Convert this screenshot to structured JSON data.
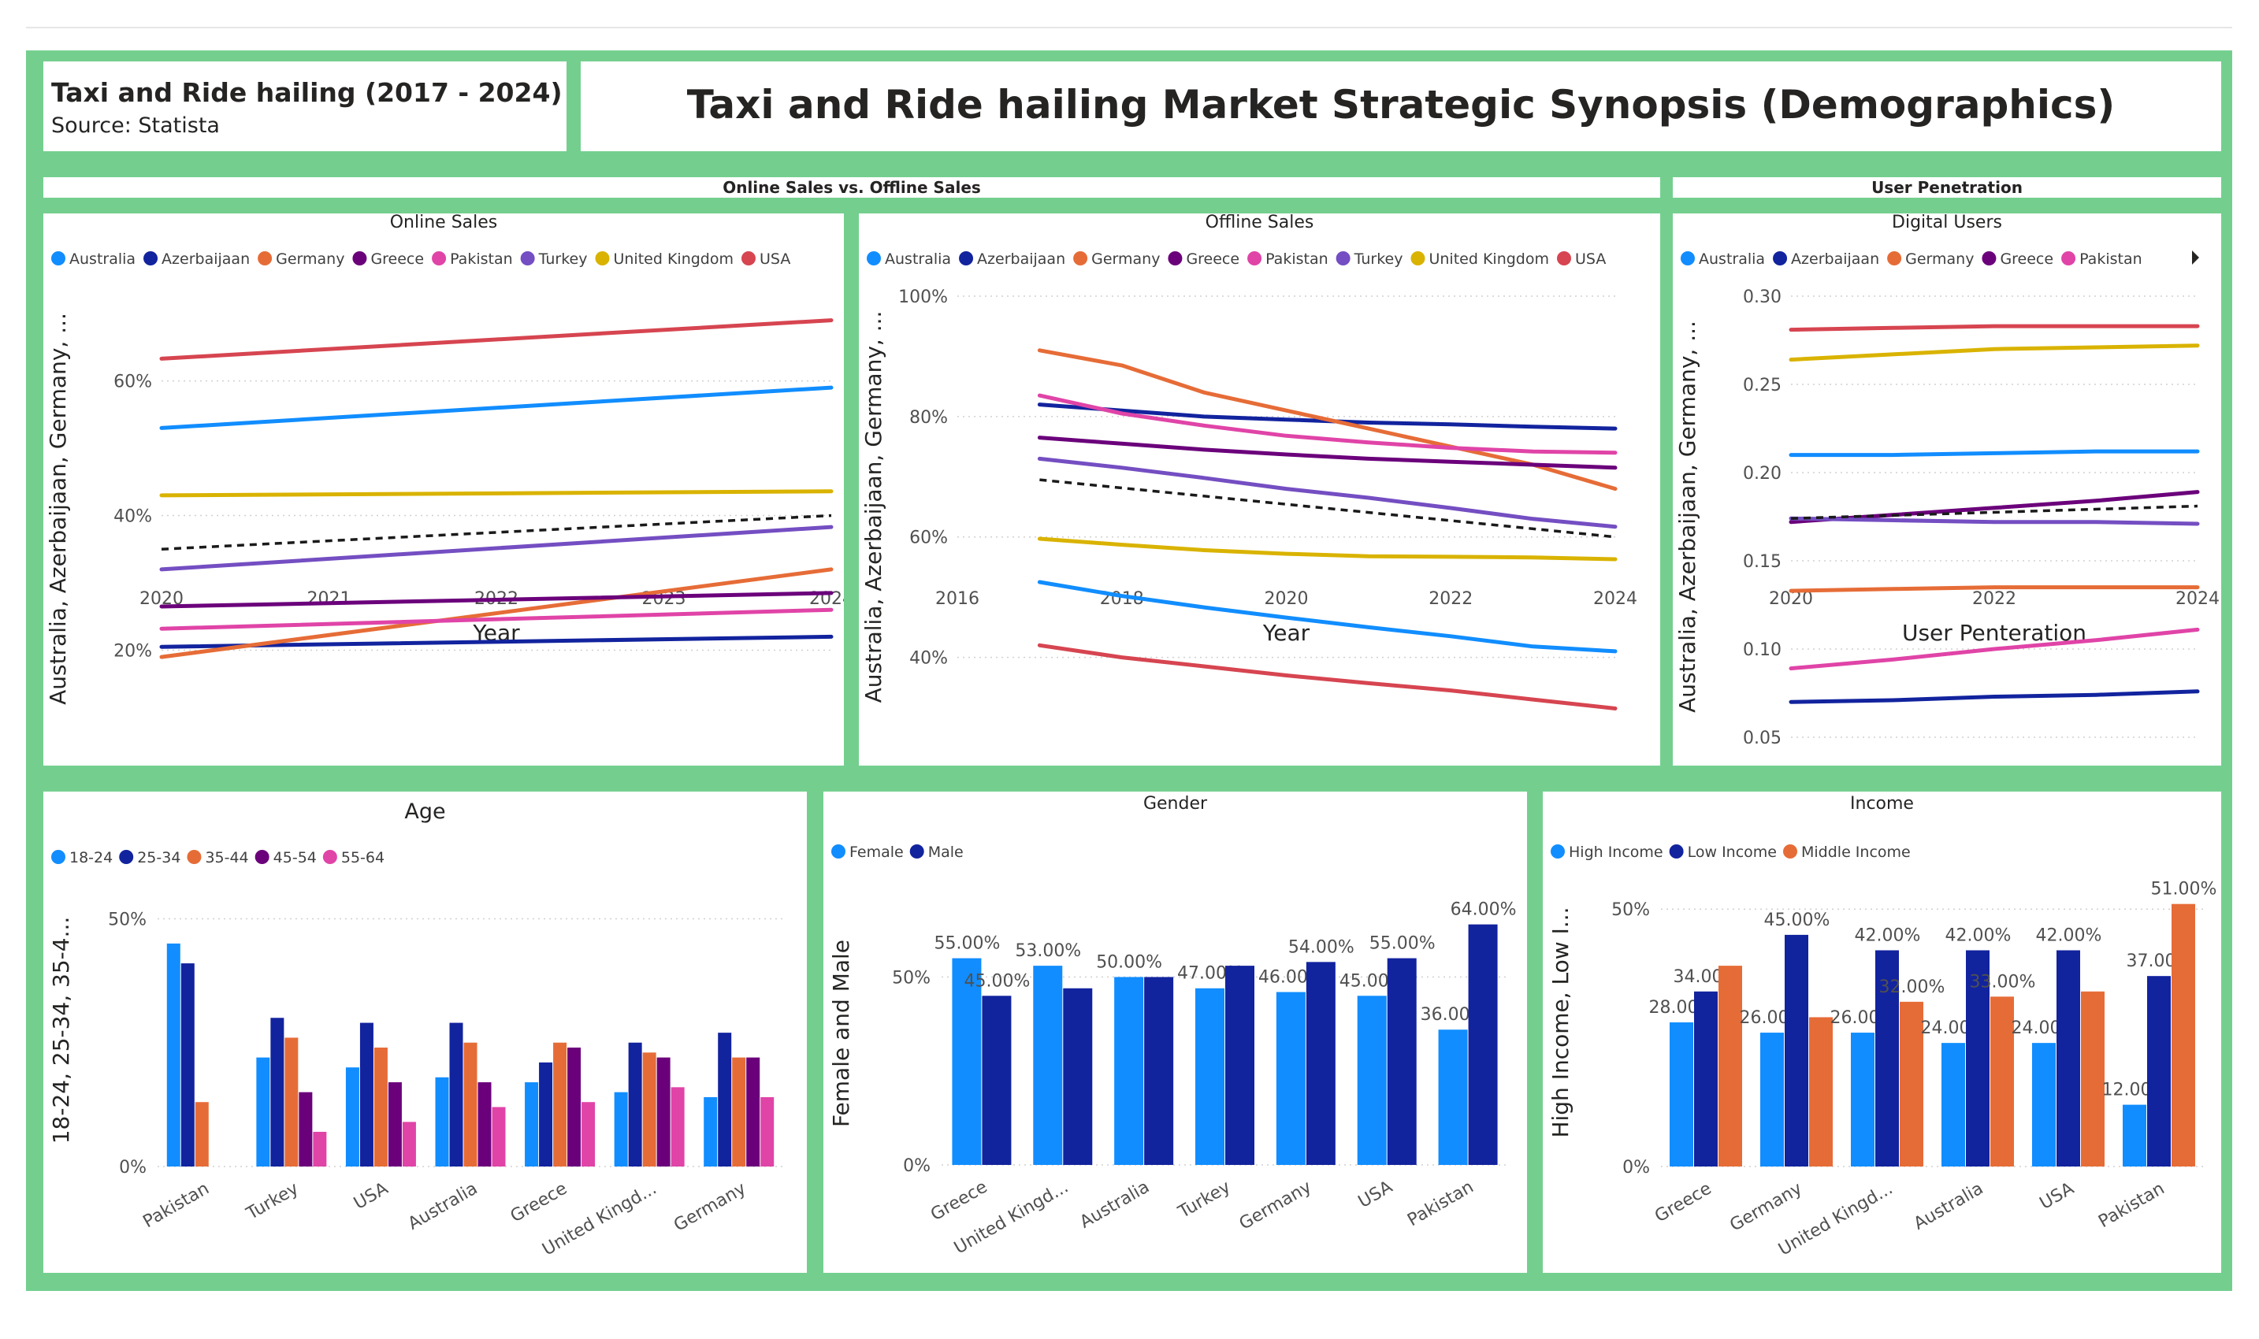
{
  "header": {
    "left_title": "Taxi and Ride hailing (2017 - 2024)",
    "left_source": "Source: Statista",
    "main_title": "Taxi and Ride hailing Market Strategic Synopsis (Demographics)"
  },
  "sections": {
    "online_offline": "Online Sales vs. Offline Sales",
    "user_penetration": "User Penetration"
  },
  "colors": {
    "Australia": "#118dff",
    "Azerbaijaan": "#12239e",
    "Germany": "#e66c37",
    "Greece": "#6b007b",
    "Pakistan": "#e044a7",
    "Turkey": "#744ec2",
    "United Kingdom": "#d9b300",
    "USA": "#d64550",
    "board": "#74cf8f"
  },
  "chart_data": [
    {
      "id": "online",
      "type": "line",
      "title": "Online Sales",
      "xlabel": "Year",
      "ylabel": "Australia, Azerbaijaan, Germany, ...",
      "legend": [
        "Australia",
        "Azerbaijaan",
        "Germany",
        "Greece",
        "Pakistan",
        "Turkey",
        "United Kingdom",
        "USA"
      ],
      "x": [
        2020,
        2024
      ],
      "xticks": [
        "2020",
        "2021",
        "2022",
        "2023",
        "2024"
      ],
      "ylim": [
        0.1,
        0.72
      ],
      "yticks": [
        0.2,
        0.4,
        0.6
      ],
      "ytick_labels": [
        "20%",
        "40%",
        "60%"
      ],
      "series": [
        {
          "name": "Australia",
          "values": [
            0.53,
            0.59
          ]
        },
        {
          "name": "Azerbaijaan",
          "values": [
            0.205,
            0.22
          ]
        },
        {
          "name": "Germany",
          "values": [
            0.19,
            0.32
          ]
        },
        {
          "name": "Greece",
          "values": [
            0.265,
            0.285
          ]
        },
        {
          "name": "Pakistan",
          "values": [
            0.232,
            0.26
          ]
        },
        {
          "name": "Turkey",
          "values": [
            0.32,
            0.383
          ]
        },
        {
          "name": "United Kingdom",
          "values": [
            0.43,
            0.436
          ]
        },
        {
          "name": "USA",
          "values": [
            0.633,
            0.69
          ]
        }
      ],
      "trend": [
        0.35,
        0.4
      ]
    },
    {
      "id": "offline",
      "type": "line",
      "title": "Offline Sales",
      "xlabel": "Year",
      "ylabel": "Australia, Azerbaijaan, Germany, ...",
      "legend": [
        "Australia",
        "Azerbaijaan",
        "Germany",
        "Greece",
        "Pakistan",
        "Turkey",
        "United Kingdom",
        "USA"
      ],
      "x": [
        2017,
        2018,
        2019,
        2020,
        2021,
        2022,
        2023,
        2024
      ],
      "xlim": [
        2016,
        2024
      ],
      "xticks": [
        "2016",
        "2018",
        "2020",
        "2022",
        "2024"
      ],
      "ylim": [
        0.3,
        1.0
      ],
      "yticks": [
        0.4,
        0.6,
        0.8,
        1.0
      ],
      "ytick_labels": [
        "40%",
        "60%",
        "80%",
        "100%"
      ],
      "series": [
        {
          "name": "Australia",
          "values": [
            0.525,
            0.502,
            0.483,
            0.466,
            0.45,
            0.435,
            0.418,
            0.41
          ]
        },
        {
          "name": "Azerbaijaan",
          "values": [
            0.82,
            0.81,
            0.8,
            0.795,
            0.79,
            0.787,
            0.783,
            0.78
          ]
        },
        {
          "name": "Germany",
          "values": [
            0.91,
            0.885,
            0.84,
            0.81,
            0.78,
            0.75,
            0.72,
            0.68
          ]
        },
        {
          "name": "Greece",
          "values": [
            0.765,
            0.755,
            0.745,
            0.737,
            0.73,
            0.725,
            0.72,
            0.715
          ]
        },
        {
          "name": "Pakistan",
          "values": [
            0.835,
            0.805,
            0.785,
            0.768,
            0.757,
            0.748,
            0.742,
            0.74
          ]
        },
        {
          "name": "Turkey",
          "values": [
            0.73,
            0.715,
            0.698,
            0.68,
            0.665,
            0.648,
            0.63,
            0.617
          ]
        },
        {
          "name": "United Kingdom",
          "values": [
            0.597,
            0.587,
            0.578,
            0.572,
            0.568,
            0.567,
            0.566,
            0.563
          ]
        },
        {
          "name": "USA",
          "values": [
            0.42,
            0.4,
            0.385,
            0.37,
            0.357,
            0.345,
            0.33,
            0.315
          ]
        }
      ],
      "trend": [
        0.695,
        0.6
      ]
    },
    {
      "id": "digital",
      "type": "line",
      "title": "Digital Users",
      "xlabel": "User Penteration",
      "ylabel": "Australia, Azerbaijaan, Germany, ...",
      "legend": [
        "Australia",
        "Azerbaijaan",
        "Germany",
        "Greece",
        "Pakistan"
      ],
      "x": [
        2020,
        2021,
        2022,
        2023,
        2024
      ],
      "xticks": [
        "2020",
        "2022",
        "2024"
      ],
      "ylim": [
        0.05,
        0.3
      ],
      "yticks": [
        0.05,
        0.1,
        0.15,
        0.2,
        0.25,
        0.3
      ],
      "ytick_labels": [
        "0.05",
        "0.10",
        "0.15",
        "0.20",
        "0.25",
        "0.30"
      ],
      "series": [
        {
          "name": "Australia",
          "values": [
            0.21,
            0.21,
            0.211,
            0.212,
            0.212
          ]
        },
        {
          "name": "Azerbaijaan",
          "values": [
            0.07,
            0.071,
            0.073,
            0.074,
            0.076
          ]
        },
        {
          "name": "Germany",
          "values": [
            0.133,
            0.134,
            0.135,
            0.135,
            0.135
          ]
        },
        {
          "name": "Greece",
          "values": [
            0.172,
            0.176,
            0.18,
            0.184,
            0.189
          ]
        },
        {
          "name": "Pakistan",
          "values": [
            0.089,
            0.094,
            0.1,
            0.105,
            0.111
          ]
        },
        {
          "name": "Turkey",
          "values": [
            0.174,
            0.173,
            0.172,
            0.172,
            0.171
          ]
        },
        {
          "name": "United Kingdom",
          "values": [
            0.264,
            0.267,
            0.27,
            0.271,
            0.272
          ]
        },
        {
          "name": "USA",
          "values": [
            0.281,
            0.282,
            0.283,
            0.283,
            0.283
          ]
        }
      ],
      "trend": [
        0.174,
        0.181
      ]
    },
    {
      "id": "age",
      "type": "bar",
      "title": "Age",
      "xlabel": "Region",
      "ylabel": "18-24, 25-34, 35-4...",
      "categories": [
        "Pakistan",
        "Turkey",
        "USA",
        "Australia",
        "Greece",
        "United Kingd...",
        "Germany"
      ],
      "ylim": [
        0,
        0.55
      ],
      "yticks": [
        0,
        0.5
      ],
      "ytick_labels": [
        "0%",
        "50%"
      ],
      "series": [
        {
          "name": "18-24",
          "values": [
            0.45,
            0.22,
            0.2,
            0.18,
            0.17,
            0.15,
            0.14
          ]
        },
        {
          "name": "25-34",
          "values": [
            0.41,
            0.3,
            0.29,
            0.29,
            0.21,
            0.25,
            0.27
          ]
        },
        {
          "name": "35-44",
          "values": [
            0.13,
            0.26,
            0.24,
            0.25,
            0.25,
            0.23,
            0.22
          ]
        },
        {
          "name": "45-54",
          "values": [
            0.0,
            0.15,
            0.17,
            0.17,
            0.24,
            0.22,
            0.22
          ]
        },
        {
          "name": "55-64",
          "values": [
            0.0,
            0.07,
            0.09,
            0.12,
            0.13,
            0.16,
            0.14
          ]
        }
      ],
      "series_colors": [
        "#118dff",
        "#12239e",
        "#e66c37",
        "#6b007b",
        "#e044a7"
      ]
    },
    {
      "id": "gender",
      "type": "bar",
      "title": "Gender",
      "xlabel": "Region",
      "ylabel": "Female and Male",
      "categories": [
        "Greece",
        "United Kingd...",
        "Australia",
        "Turkey",
        "Germany",
        "USA",
        "Pakistan"
      ],
      "ylim": [
        0,
        0.7
      ],
      "yticks": [
        0,
        0.5
      ],
      "ytick_labels": [
        "0%",
        "50%"
      ],
      "series": [
        {
          "name": "Female",
          "values": [
            0.55,
            0.53,
            0.5,
            0.47,
            0.46,
            0.45,
            0.36
          ],
          "labels": [
            "55.00%",
            "53.00%",
            "50.00%",
            "47.00%",
            "46.00%",
            "45.00%",
            "36.00%"
          ]
        },
        {
          "name": "Male",
          "values": [
            0.45,
            0.47,
            0.5,
            0.53,
            0.54,
            0.55,
            0.64
          ],
          "labels": [
            "45.00%",
            "",
            "",
            "",
            "54.00%",
            "55.00%",
            "64.00%"
          ]
        }
      ],
      "series_colors": [
        "#118dff",
        "#12239e"
      ]
    },
    {
      "id": "income",
      "type": "bar",
      "title": "Income",
      "xlabel": "Income",
      "ylabel": "High Income, Low I...",
      "categories": [
        "Greece",
        "Germany",
        "United Kingd...",
        "Australia",
        "USA",
        "Pakistan"
      ],
      "ylim": [
        0,
        0.56
      ],
      "yticks": [
        0,
        0.5
      ],
      "ytick_labels": [
        "0%",
        "50%"
      ],
      "series": [
        {
          "name": "High Income",
          "values": [
            0.28,
            0.26,
            0.26,
            0.24,
            0.24,
            0.12
          ],
          "labels": [
            "28.00%",
            "26.00%",
            "26.00%",
            "24.00%",
            "24.00%",
            "12.00%"
          ]
        },
        {
          "name": "Low Income",
          "values": [
            0.34,
            0.45,
            0.42,
            0.42,
            0.42,
            0.37
          ],
          "labels": [
            "34.00%",
            "45.00%",
            "42.00%",
            "42.00%",
            "42.00%",
            "37.00%"
          ]
        },
        {
          "name": "Middle Income",
          "values": [
            0.39,
            0.29,
            0.32,
            0.33,
            0.34,
            0.51
          ],
          "labels": [
            "",
            "",
            "32.00%",
            "33.00%",
            "",
            "51.00%"
          ]
        }
      ],
      "series_colors": [
        "#118dff",
        "#12239e",
        "#e66c37"
      ]
    }
  ]
}
